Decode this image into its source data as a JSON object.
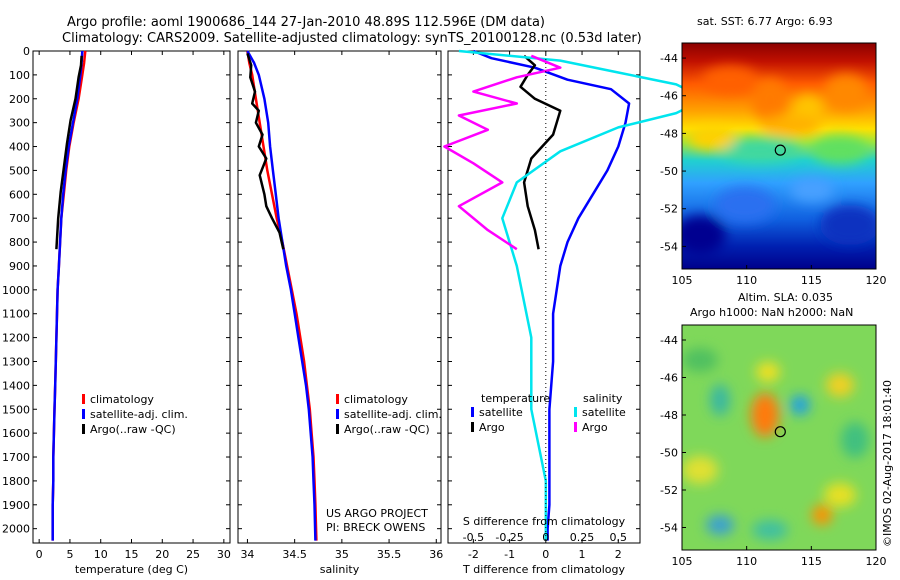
{
  "header": {
    "line1": "Argo profile: aoml 1900686_144 27-Jan-2010 48.89S 112.596E (DM data)",
    "line2": "Climatology: CARS2009. Satellite-adjusted climatology: synTS_20100128.nc (0.53d later)"
  },
  "colors": {
    "climatology": "#ff0000",
    "satellite": "#0000ff",
    "argo": "#000000",
    "satellite_s": "#00e5ee",
    "argo_s": "#ff00ff"
  },
  "chart_data": [
    {
      "type": "line",
      "id": "temperature",
      "xlabel": "temperature (deg C)",
      "xlim": [
        -1,
        31
      ],
      "xticks": [
        0,
        5,
        10,
        15,
        20,
        25,
        30
      ],
      "xtick_labels": [
        "0",
        "5",
        "10",
        "15",
        "20",
        "25",
        "30"
      ],
      "ylim": [
        2060,
        0
      ],
      "yticks": [
        0,
        100,
        200,
        300,
        400,
        500,
        600,
        700,
        800,
        900,
        1000,
        1100,
        1200,
        1300,
        1400,
        1500,
        1600,
        1700,
        1800,
        1900,
        2000
      ],
      "ytick_labels": [
        "0",
        "100",
        "200",
        "300",
        "400",
        "500",
        "600",
        "700",
        "800",
        "900",
        "1000",
        "1100",
        "1200",
        "1300",
        "1400",
        "1500",
        "1600",
        "1700",
        "1800",
        "1900",
        "2000"
      ],
      "legend": {
        "position": "lower-center",
        "entries": [
          "climatology",
          "satellite-adj. clim.",
          "Argo(..raw -QC)"
        ]
      },
      "series": [
        {
          "name": "climatology",
          "color": "#ff0000",
          "x": [
            7.5,
            7.3,
            7.0,
            6.4,
            5.6,
            4.9,
            4.4,
            4.0,
            3.6,
            3.4,
            3.2,
            3.0,
            2.9,
            2.8,
            2.7,
            2.6,
            2.5,
            2.4,
            2.3,
            2.3,
            2.2,
            2.2
          ],
          "y": [
            0,
            50,
            100,
            200,
            300,
            400,
            500,
            600,
            700,
            800,
            900,
            1000,
            1100,
            1200,
            1300,
            1400,
            1500,
            1600,
            1700,
            1800,
            1900,
            2050
          ]
        },
        {
          "name": "satellite-adj. clim.",
          "color": "#0000ff",
          "x": [
            7.0,
            6.9,
            6.7,
            6.2,
            5.5,
            4.8,
            4.3,
            3.9,
            3.6,
            3.4,
            3.2,
            3.0,
            2.9,
            2.8,
            2.7,
            2.6,
            2.5,
            2.4,
            2.3,
            2.3,
            2.2,
            2.2
          ],
          "y": [
            0,
            50,
            100,
            200,
            300,
            400,
            500,
            600,
            700,
            800,
            900,
            1000,
            1100,
            1200,
            1300,
            1400,
            1500,
            1600,
            1700,
            1800,
            1900,
            2050
          ]
        },
        {
          "name": "Argo(..raw -QC)",
          "color": "#000000",
          "x": [
            6.9,
            6.8,
            6.4,
            5.9,
            5.1,
            4.5,
            4.0,
            3.5,
            3.1,
            2.8
          ],
          "y": [
            20,
            60,
            110,
            200,
            290,
            390,
            490,
            590,
            700,
            830
          ]
        }
      ]
    },
    {
      "type": "line",
      "id": "salinity",
      "xlabel": "salinity",
      "xlim": [
        33.9,
        36.05
      ],
      "xticks": [
        34,
        34.5,
        35,
        35.5,
        36
      ],
      "xtick_labels": [
        "34",
        "34.5",
        "35",
        "35.5",
        "36"
      ],
      "ylim": [
        2060,
        0
      ],
      "legend": {
        "position": "lower-right",
        "entries": [
          "climatology",
          "satellite-adj. clim.",
          "Argo(..raw -QC)"
        ]
      },
      "annotations": [
        "US ARGO PROJECT",
        "PI: BRECK OWENS"
      ],
      "series": [
        {
          "name": "climatology",
          "color": "#ff0000",
          "x": [
            34.0,
            34.02,
            34.05,
            34.09,
            34.13,
            34.17,
            34.21,
            34.26,
            34.31,
            34.37,
            34.42,
            34.47,
            34.52,
            34.56,
            34.6,
            34.63,
            34.66,
            34.68,
            34.7,
            34.71,
            34.72,
            34.73
          ],
          "y": [
            0,
            50,
            100,
            200,
            300,
            400,
            500,
            600,
            700,
            800,
            900,
            1000,
            1100,
            1200,
            1300,
            1400,
            1500,
            1600,
            1700,
            1800,
            1900,
            2050
          ]
        },
        {
          "name": "satellite-adj. clim.",
          "color": "#0000ff",
          "x": [
            34.0,
            34.07,
            34.12,
            34.18,
            34.22,
            34.24,
            34.27,
            34.3,
            34.33,
            34.37,
            34.41,
            34.46,
            34.5,
            34.54,
            34.58,
            34.62,
            34.65,
            34.67,
            34.69,
            34.7,
            34.71,
            34.72
          ],
          "y": [
            0,
            50,
            100,
            200,
            300,
            400,
            500,
            600,
            700,
            800,
            900,
            1000,
            1100,
            1200,
            1300,
            1400,
            1500,
            1600,
            1700,
            1800,
            1900,
            2050
          ]
        },
        {
          "name": "Argo(..raw -QC)",
          "color": "#000000",
          "x": [
            34.0,
            34.04,
            34.03,
            34.08,
            34.05,
            34.12,
            34.09,
            34.16,
            34.12,
            34.2,
            34.13,
            34.18,
            34.2,
            34.26,
            34.34,
            34.38
          ],
          "y": [
            10,
            60,
            110,
            170,
            220,
            250,
            300,
            350,
            400,
            450,
            520,
            600,
            650,
            700,
            760,
            830
          ]
        }
      ]
    },
    {
      "type": "line",
      "id": "difference",
      "xlabel": "T difference from climatology",
      "xlabel_top": "S difference from climatology",
      "xlim": [
        -2.7,
        2.6
      ],
      "xticks": [
        -2,
        -1,
        0,
        1,
        2
      ],
      "xtick_labels": [
        "-2",
        "-1",
        "0",
        "1",
        "2"
      ],
      "sticks": [
        -0.5,
        -0.25,
        0,
        0.25,
        0.5
      ],
      "stick_labels": [
        "-0.5",
        "-0.25",
        "0",
        "0.25",
        "0.5"
      ],
      "ylim": [
        2060,
        0
      ],
      "legend": {
        "position": "lower-center",
        "headers": [
          "temperature",
          "salinity"
        ],
        "entries": [
          "satellite",
          "Argo",
          "satellite",
          "Argo"
        ]
      },
      "series": [
        {
          "name": "satellite",
          "group": "temperature",
          "color": "#0000ff",
          "x": [
            -2.0,
            -1.5,
            -0.3,
            0.6,
            1.8,
            2.3,
            2.2,
            2.0,
            1.7,
            1.3,
            0.9,
            0.6,
            0.4,
            0.3,
            0.2,
            0.2,
            0.1,
            0.1,
            0.1,
            0.05,
            0.05
          ],
          "y": [
            0,
            30,
            70,
            120,
            160,
            220,
            300,
            400,
            500,
            600,
            700,
            800,
            900,
            1000,
            1100,
            1300,
            1500,
            1700,
            1900,
            2000,
            2050
          ]
        },
        {
          "name": "Argo",
          "group": "temperature",
          "color": "#000000",
          "x": [
            -0.6,
            -0.3,
            -0.5,
            -0.7,
            -0.3,
            0.4,
            0.3,
            0.2,
            -0.1,
            -0.4,
            -0.6,
            -0.5,
            -0.3,
            -0.2
          ],
          "y": [
            20,
            60,
            100,
            150,
            200,
            250,
            300,
            350,
            400,
            450,
            550,
            650,
            750,
            830
          ]
        },
        {
          "name": "satellite",
          "group": "salinity",
          "color": "#00e5ee",
          "x": [
            -0.6,
            0.1,
            0.5,
            0.9,
            1.1,
            0.9,
            0.5,
            0.1,
            -0.2,
            -0.3,
            -0.2,
            -0.1,
            -0.1,
            0.0,
            0.0
          ],
          "y": [
            0,
            40,
            90,
            140,
            200,
            260,
            320,
            420,
            550,
            700,
            900,
            1200,
            1500,
            1800,
            2050
          ]
        },
        {
          "name": "Argo",
          "group": "salinity",
          "color": "#ff00ff",
          "x": [
            -0.1,
            0.1,
            -0.2,
            -0.5,
            -0.2,
            -0.6,
            -0.4,
            -0.7,
            -0.5,
            -0.3,
            -0.6,
            -0.4,
            -0.2
          ],
          "y": [
            20,
            70,
            110,
            170,
            220,
            270,
            330,
            400,
            470,
            550,
            650,
            750,
            830
          ]
        }
      ]
    },
    {
      "type": "heatmap",
      "id": "sst_map",
      "title": "sat. SST: 6.77 Argo: 6.93",
      "xlim": [
        105,
        120
      ],
      "ylim": [
        -55.2,
        -43.2
      ],
      "xticks": [
        105,
        110,
        115,
        120
      ],
      "xtick_labels": [
        "105",
        "110",
        "115",
        "120"
      ],
      "yticks": [
        -44,
        -46,
        -48,
        -50,
        -52,
        -54
      ],
      "ytick_labels": [
        "-44",
        "-46",
        "-48",
        "-50",
        "-52",
        "-54"
      ],
      "marker": {
        "lon": 112.6,
        "lat": -48.89
      }
    },
    {
      "type": "heatmap",
      "id": "sla_map",
      "title": "Altim. SLA: 0.035",
      "subtitle": "Argo h1000: NaN h2000: NaN",
      "xlim": [
        105,
        120
      ],
      "ylim": [
        -55.2,
        -43.2
      ],
      "xticks": [
        105,
        110,
        115,
        120
      ],
      "xtick_labels": [
        "105",
        "110",
        "115",
        "120"
      ],
      "yticks": [
        -44,
        -46,
        -48,
        -50,
        -52,
        -54
      ],
      "ytick_labels": [
        "-44",
        "-46",
        "-48",
        "-50",
        "-52",
        "-54"
      ],
      "marker": {
        "lon": 112.6,
        "lat": -48.89
      },
      "side_label": "©IMOS 02-Aug-2017 18:01:40"
    }
  ]
}
